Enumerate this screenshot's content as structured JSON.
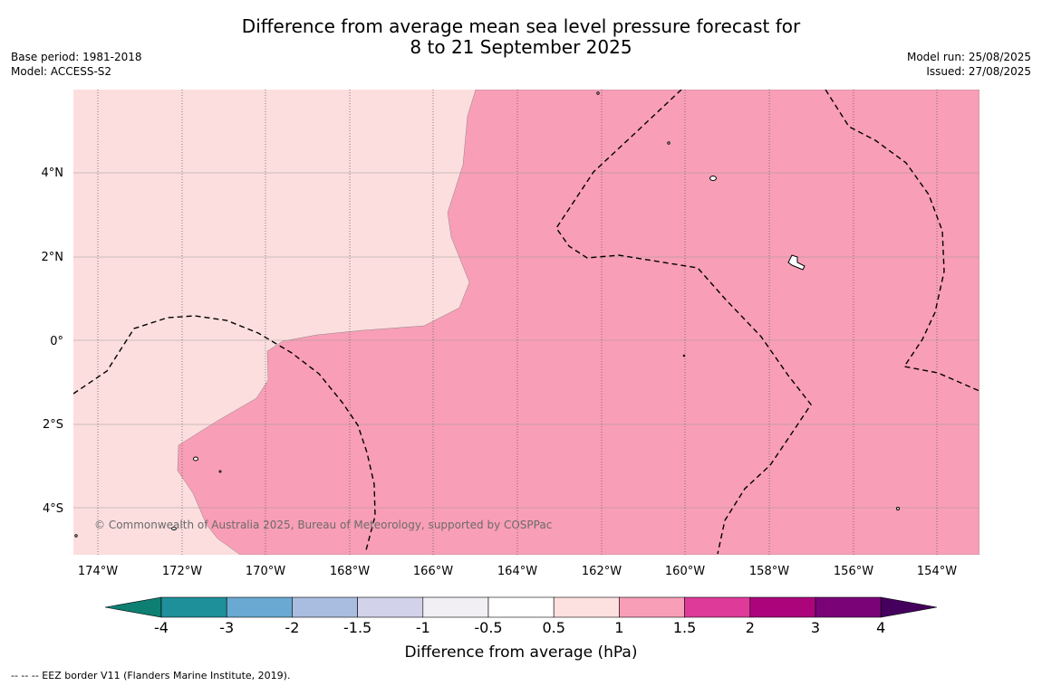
{
  "title": {
    "line1": "Difference from average mean sea level pressure forecast for",
    "line2": "8 to 21 September 2025"
  },
  "meta": {
    "base_period": "Base period: 1981-2018",
    "model": "Model: ACCESS-S2",
    "model_run": "Model run: 25/08/2025",
    "issued": "Issued: 27/08/2025"
  },
  "map": {
    "lon_ticks": [
      "174°W",
      "172°W",
      "170°W",
      "168°W",
      "166°W",
      "164°W",
      "162°W",
      "160°W",
      "158°W",
      "156°W",
      "154°W"
    ],
    "lat_ticks": [
      "4°N",
      "2°N",
      "0°",
      "2°S",
      "4°S"
    ],
    "copyright": "© Commonwealth of Australia 2025, Bureau of Meteorology, supported by COSPPac",
    "colors": {
      "band_0_5_1": "#fcdede",
      "band_1_1_5": "#f99eb7",
      "grid": "#777777"
    }
  },
  "colorbar": {
    "label": "Difference from average (hPa)",
    "ticks": [
      "-4",
      "-3",
      "-2",
      "-1.5",
      "-1",
      "-0.5",
      "0.5",
      "1",
      "1.5",
      "2",
      "3",
      "4"
    ],
    "colors": [
      "#0e7f73",
      "#1e9099",
      "#69a9d2",
      "#a8bde0",
      "#d2d2ea",
      "#f1eff4",
      "#ffffff",
      "#fde0e0",
      "#f99eb7",
      "#de3a9a",
      "#ac057c",
      "#7a0477",
      "#45005e"
    ]
  },
  "footer": "--  --  -- EEZ border V11 (Flanders Marine Institute, 2019)."
}
